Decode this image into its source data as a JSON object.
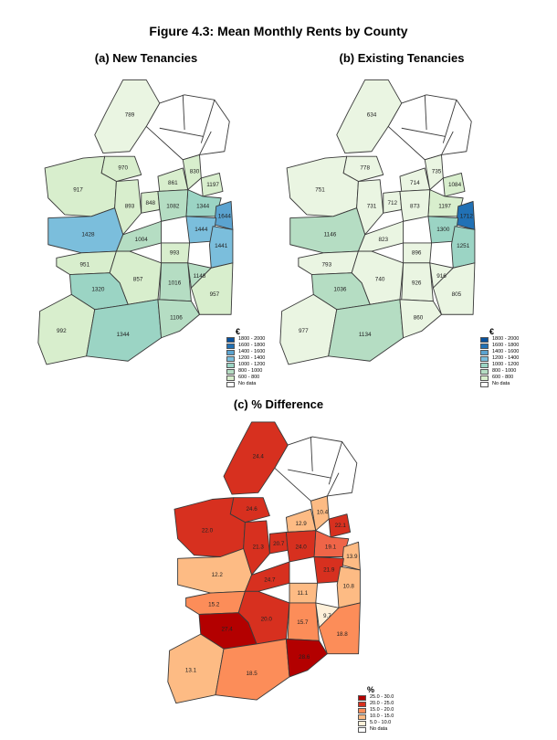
{
  "figure_title": "Figure 4.3: Mean Monthly Rents by County",
  "panels": {
    "a": {
      "title": "(a) New Tenancies",
      "values": [
        "789",
        "970",
        "917",
        "893",
        "848",
        "861",
        "830",
        "1197",
        "1344",
        "1082",
        "1428",
        "1644",
        "1004",
        "1444",
        "993",
        "1441",
        "951",
        "857",
        "1016",
        "1148",
        "957",
        "1320",
        "992",
        "1344",
        "1106"
      ],
      "colors": [
        "#eaf5e2",
        "#d8eecd",
        "#d8eecd",
        "#d8eecd",
        "#d8eecd",
        "#d8eecd",
        "#d8eecd",
        "#d8eecd",
        "#9bd4c4",
        "#b5ddc3",
        "#7bbedc",
        "#5ba3d0",
        "#b5ddc3",
        "#7bbedc",
        "#d8eecd",
        "#7bbedc",
        "#d8eecd",
        "#d8eecd",
        "#b5ddc3",
        "#b5ddc3",
        "#d8eecd",
        "#9bd4c4",
        "#d8eecd",
        "#9bd4c4",
        "#b5ddc3"
      ]
    },
    "b": {
      "title": "(b) Existing Tenancies",
      "values": [
        "634",
        "778",
        "751",
        "731",
        "712",
        "714",
        "735",
        "1084",
        "1197",
        "873",
        "1146",
        "1712",
        "823",
        "1300",
        "896",
        "1251",
        "793",
        "740",
        "926",
        "916",
        "805",
        "1036",
        "977",
        "1134",
        "860"
      ],
      "colors": [
        "#eaf5e2",
        "#eaf5e2",
        "#eaf5e2",
        "#eaf5e2",
        "#eaf5e2",
        "#eaf5e2",
        "#eaf5e2",
        "#d8eecd",
        "#d8eecd",
        "#eaf5e2",
        "#b5ddc3",
        "#2171b5",
        "#eaf5e2",
        "#9bd4c4",
        "#eaf5e2",
        "#9bd4c4",
        "#eaf5e2",
        "#eaf5e2",
        "#eaf5e2",
        "#eaf5e2",
        "#eaf5e2",
        "#b5ddc3",
        "#eaf5e2",
        "#b5ddc3",
        "#eaf5e2"
      ]
    },
    "c": {
      "title": "(c) % Difference",
      "values": [
        "24.4",
        "24.6",
        "22.0",
        "21.3",
        "20.7",
        "12.9",
        "10.4",
        "22.1",
        "19.1",
        "24.0",
        "12.2",
        "13.9",
        "24.7",
        "21.9",
        "11.1",
        "10.8",
        "15.2",
        "20.0",
        "15.7",
        "9.7",
        "18.8",
        "27.4",
        "13.1",
        "18.5",
        "28.6"
      ],
      "colors": [
        "#d7301f",
        "#d7301f",
        "#d7301f",
        "#d7301f",
        "#d7301f",
        "#fdbb84",
        "#fdbb84",
        "#d7301f",
        "#ef6548",
        "#d7301f",
        "#fdbb84",
        "#fdbb84",
        "#d7301f",
        "#d7301f",
        "#fdbb84",
        "#fdbb84",
        "#fc8d59",
        "#d7301f",
        "#fc8d59",
        "#fef0d9",
        "#fc8d59",
        "#b30000",
        "#fdbb84",
        "#fc8d59",
        "#b30000"
      ]
    }
  },
  "legend_rent": {
    "unit": "€",
    "items": [
      {
        "label": "1800 - 2000",
        "color": "#08519c"
      },
      {
        "label": "1600 - 1800",
        "color": "#2171b5"
      },
      {
        "label": "1400 - 1600",
        "color": "#5ba3d0"
      },
      {
        "label": "1200 - 1400",
        "color": "#7bbedc"
      },
      {
        "label": "1000 - 1200",
        "color": "#9bd4c4"
      },
      {
        "label": "800 - 1000",
        "color": "#b5ddc3"
      },
      {
        "label": "600 - 800",
        "color": "#d8eecd"
      },
      {
        "label": "No data",
        "color": "#ffffff"
      }
    ]
  },
  "legend_pct": {
    "unit": "%",
    "items": [
      {
        "label": "25.0 - 30.0",
        "color": "#b30000"
      },
      {
        "label": "20.0 - 25.0",
        "color": "#d7301f"
      },
      {
        "label": "15.0 - 20.0",
        "color": "#fc8d59"
      },
      {
        "label": "10.0 - 15.0",
        "color": "#fdbb84"
      },
      {
        "label": "5.0 - 10.0",
        "color": "#fef0d9"
      },
      {
        "label": "No data",
        "color": "#ffffff"
      }
    ]
  }
}
